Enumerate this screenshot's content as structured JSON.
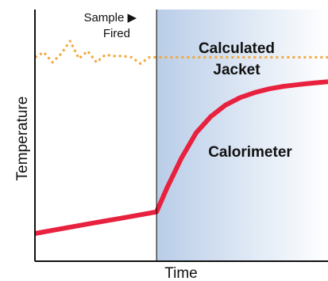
{
  "colors": {
    "calorimeter_line": "#e8213e",
    "jacket_line": "#f2a83a",
    "shade_start": "#b9cde8",
    "shade_end": "#ffffff",
    "axis": "#111111",
    "marker": "#000000"
  },
  "chart_data": {
    "type": "line",
    "title": "",
    "xlabel": "Time",
    "ylabel": "Temperature",
    "xlim": [
      0,
      100
    ],
    "ylim": [
      0,
      100
    ],
    "grid": false,
    "axis_ticks": false,
    "event_marker": {
      "x": 41.5,
      "label_line1": "Sample ▶",
      "label_line2": "Fired",
      "shaded_region_after": true
    },
    "series": [
      {
        "key": "jacket",
        "style": "dotted",
        "label_line1": "Calculated",
        "label_line2": "Jacket",
        "x": [
          0,
          3,
          6,
          9,
          12,
          15,
          18,
          21,
          24,
          27,
          30,
          33,
          36,
          39,
          42,
          100
        ],
        "y": [
          81,
          83,
          79,
          82.5,
          87.5,
          80.5,
          83.5,
          79,
          82,
          81.5,
          81.5,
          81,
          78.5,
          81,
          81,
          81
        ]
      },
      {
        "key": "calorimeter",
        "style": "solid",
        "label_line1": "Calorimeter",
        "x": [
          0,
          10,
          20,
          30,
          41.5,
          45,
          50,
          55,
          60,
          65,
          70,
          75,
          80,
          85,
          90,
          95,
          100
        ],
        "y": [
          11,
          13.1,
          15.2,
          17.2,
          19.6,
          29,
          41,
          51,
          57.5,
          62,
          65,
          67,
          68.5,
          69.5,
          70.2,
          70.8,
          71.3
        ]
      }
    ]
  }
}
